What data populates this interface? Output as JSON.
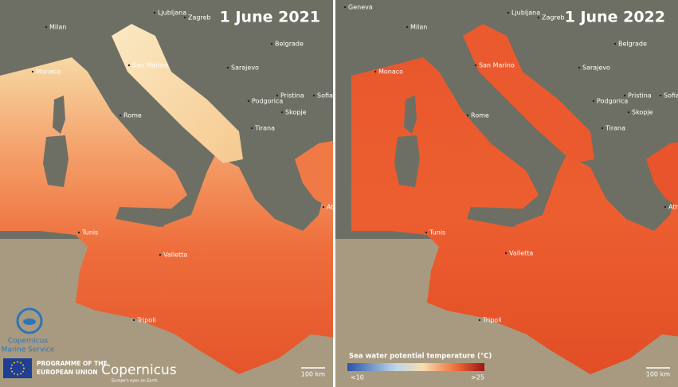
{
  "panels": [
    {
      "date": "1 June 2021",
      "cities": [
        "Ljubljana",
        "Zagreb",
        "Milan",
        "Belgrade",
        "San Marino",
        "Monaco",
        "Sarajevo",
        "Rome",
        "Podgorica",
        "Pristina",
        "Sofia",
        "Skopje",
        "Tirana",
        "Athens",
        "Tunis",
        "Valletta",
        "Tripoli"
      ],
      "scale_bar": "100 km"
    },
    {
      "date": "1 June 2022",
      "cities": [
        "Geneva",
        "Ljubljana",
        "Zagreb",
        "Milan",
        "Belgrade",
        "San Marino",
        "Monaco",
        "Sarajevo",
        "Rome",
        "Podgorica",
        "Pristina",
        "Sofia",
        "Skopje",
        "Tirana",
        "Athens",
        "Tunis",
        "Valletta",
        "Tripoli"
      ],
      "scale_bar": "100 km"
    }
  ],
  "legend": {
    "title": "Sea water potential temperature (°C)",
    "min_label": "<10",
    "max_label": ">25"
  },
  "logos": {
    "marine_service": [
      "Copernicus",
      "Marine Service"
    ],
    "eu": [
      "PROGRAMME OF THE",
      "EUROPEAN UNION"
    ],
    "copernicus": "Copernicus",
    "tagline": "Europe's eyes on Earth"
  }
}
